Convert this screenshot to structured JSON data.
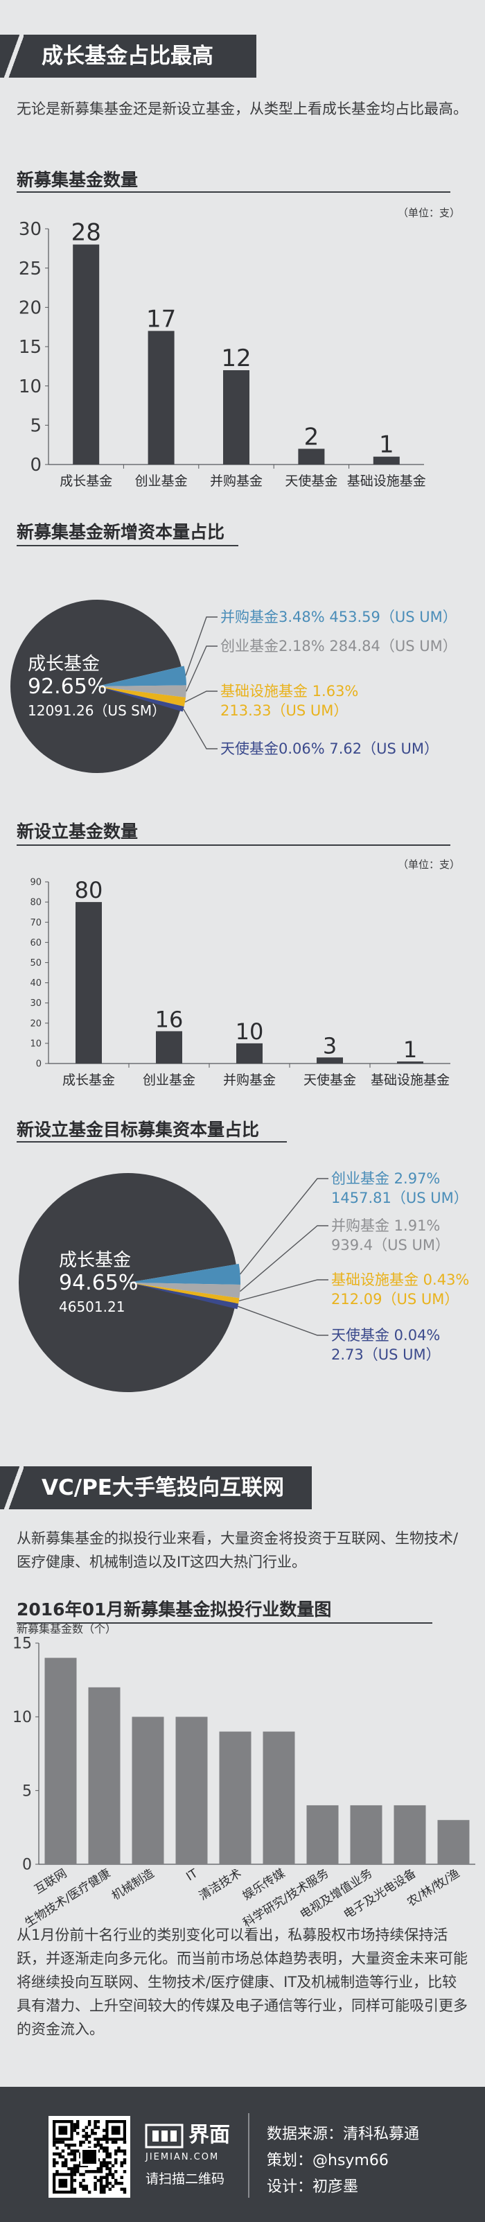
{
  "section1": {
    "title": "成长基金占比最高",
    "intro": "无论是新募集基金还是新设立基金，从类型上看成长基金均占比最高。"
  },
  "section2": {
    "title": "VC/PE大手笔投向互联网",
    "intro": "从新募集基金的拟投行业来看，大量资金将投资于互联网、生物技术/医疗健康、机械制造以及IT这四大热门行业。"
  },
  "conclusion": "从1月份前十名行业的类别变化可以看出，私募股权市场持续保持活跃，并逐渐走向多元化。而当前市场总体趋势表明，大量资金未来可能将继续投向互联网、生物技术/医疗健康、IT及机械制造等行业，比较具有潜力、上升空间较大的传媒及电子通信等行业，同样可能吸引更多的资金流入。",
  "colors": {
    "dark": "#3e4045",
    "blue": "#4a8db8",
    "gray": "#a8a9ab",
    "yellow": "#e9b21c",
    "navy": "#3b4a8c",
    "bar3": "#808184"
  },
  "footer": {
    "brand": "界面",
    "brand_url": "JIEMIAN.COM",
    "scan": "请扫描二维码",
    "source": "数据来源：清科私募通",
    "planner": "策划：@hsym66",
    "designer": "设计：初彦墨"
  },
  "chart_data": [
    {
      "type": "bar",
      "title": "新募集基金数量",
      "unit": "（单位：支）",
      "categories": [
        "成长基金",
        "创业基金",
        "并购基金",
        "天使基金",
        "基础设施基金"
      ],
      "values": [
        28,
        17,
        12,
        2,
        1
      ],
      "yticks": [
        0,
        5,
        10,
        15,
        20,
        25,
        30
      ],
      "ylim": [
        0,
        30
      ]
    },
    {
      "type": "pie",
      "title": "新募集基金新增资本量占比",
      "slices": [
        {
          "name": "成长基金",
          "pct_label": "92.65%",
          "amount_label": "12091.26（US SM）",
          "value": 92.65
        },
        {
          "name": "并购基金",
          "pct_label": "3.48%",
          "amount_label": "453.59（US UM）",
          "value": 3.48
        },
        {
          "name": "创业基金",
          "pct_label": "2.18%",
          "amount_label": "284.84（US UM）",
          "value": 2.18
        },
        {
          "name": "基础设施基金",
          "pct_label": "1.63%",
          "amount_label": "213.33（US UM）",
          "value": 1.63
        },
        {
          "name": "天使基金",
          "pct_label": "0.06%",
          "amount_label": "7.62（US UM）",
          "value": 0.06
        }
      ]
    },
    {
      "type": "bar",
      "title": "新设立基金数量",
      "unit": "（单位：支）",
      "categories": [
        "成长基金",
        "创业基金",
        "并购基金",
        "天使基金",
        "基础设施基金"
      ],
      "values": [
        80,
        16,
        10,
        3,
        1
      ],
      "yticks": [
        0,
        10,
        20,
        30,
        40,
        50,
        60,
        70,
        80,
        90
      ],
      "ylim": [
        0,
        90
      ]
    },
    {
      "type": "pie",
      "title": "新设立基金目标募集资本量占比",
      "slices": [
        {
          "name": "成长基金",
          "pct_label": "94.65%",
          "amount_label": "46501.21",
          "value": 94.65
        },
        {
          "name": "创业基金",
          "pct_label": "2.97%",
          "amount_label": "1457.81（US UM）",
          "value": 2.97
        },
        {
          "name": "并购基金",
          "pct_label": "1.91%",
          "amount_label": "939.4（US UM）",
          "value": 1.91
        },
        {
          "name": "基础设施基金",
          "pct_label": "0.43%",
          "amount_label": "212.09（US UM）",
          "value": 0.43
        },
        {
          "name": "天使基金",
          "pct_label": "0.04%",
          "amount_label": "2.73（US UM）",
          "value": 0.04
        }
      ]
    },
    {
      "type": "bar",
      "title": "2016年01月新募集基金拟投行业数量图",
      "ylabel": "新募集基金数（个）",
      "categories": [
        "互联网",
        "生物技术/医疗健康",
        "机械制造",
        "IT",
        "清洁技术",
        "娱乐传媒",
        "科学研究/技术服务",
        "电视及增值业务",
        "电子及光电设备",
        "农/林/牧/渔"
      ],
      "values": [
        14,
        12,
        10,
        10,
        9,
        9,
        4,
        4,
        4,
        3
      ],
      "yticks": [
        0,
        5,
        10,
        15
      ],
      "ylim": [
        0,
        15
      ]
    }
  ]
}
